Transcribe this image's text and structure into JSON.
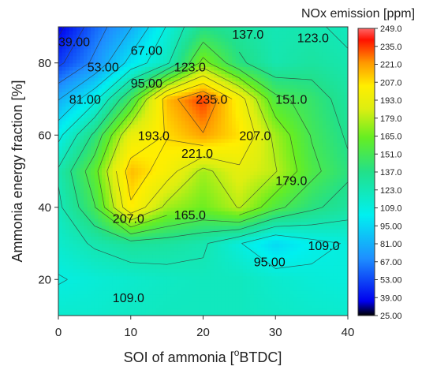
{
  "chart_data": {
    "type": "heatmap",
    "title": "",
    "xlabel": "SOI of ammonia [",
    "xlabel_sup": "o",
    "xlabel_tail": "BTDC]",
    "ylabel": "Ammonia energy fraction [%]",
    "xlim": [
      0,
      40
    ],
    "ylim": [
      10,
      90
    ],
    "x_ticks": [
      "0",
      "10",
      "20",
      "30",
      "40"
    ],
    "y_ticks": [
      "20",
      "40",
      "60",
      "80"
    ],
    "colorbar": {
      "title": "NOx emission [ppm]",
      "min": 25,
      "max": 249,
      "ticks": [
        "249.0",
        "235.0",
        "221.0",
        "207.0",
        "193.0",
        "179.0",
        "165.0",
        "151.0",
        "137.0",
        "123.0",
        "109.0",
        "95.00",
        "81.00",
        "67.00",
        "53.00",
        "39.00",
        "25.00"
      ]
    },
    "x": [
      0,
      5,
      10,
      15,
      20,
      25,
      30,
      35,
      40
    ],
    "y": [
      10,
      20,
      30,
      40,
      50,
      60,
      70,
      80,
      90
    ],
    "z": [
      [
        115,
        115,
        118,
        120,
        120,
        120,
        118,
        116,
        115
      ],
      [
        108,
        112,
        115,
        118,
        120,
        120,
        115,
        112,
        110
      ],
      [
        115,
        125,
        132,
        130,
        125,
        110,
        95,
        105,
        110
      ],
      [
        120,
        150,
        205,
        175,
        165,
        180,
        155,
        140,
        130
      ],
      [
        125,
        160,
        215,
        200,
        175,
        190,
        180,
        155,
        140
      ],
      [
        105,
        140,
        193,
        208,
        220,
        207,
        175,
        150,
        135
      ],
      [
        80,
        105,
        150,
        215,
        235,
        200,
        155,
        145,
        130
      ],
      [
        50,
        70,
        100,
        120,
        170,
        140,
        125,
        130,
        125
      ],
      [
        35,
        60,
        80,
        110,
        137,
        130,
        123,
        125,
        120
      ]
    ],
    "contour_labels": [
      {
        "x": 0,
        "y": 86,
        "text": "39.00"
      },
      {
        "x": 10,
        "y": 83.5,
        "text": "67.00"
      },
      {
        "x": 4,
        "y": 79,
        "text": "53.00"
      },
      {
        "x": 16,
        "y": 79,
        "text": "123.0"
      },
      {
        "x": 24,
        "y": 88,
        "text": "137.0"
      },
      {
        "x": 33,
        "y": 87,
        "text": "123.0"
      },
      {
        "x": 10,
        "y": 74.5,
        "text": "95.00"
      },
      {
        "x": 1.5,
        "y": 70,
        "text": "81.00"
      },
      {
        "x": 19,
        "y": 70,
        "text": "235.0"
      },
      {
        "x": 30,
        "y": 70,
        "text": "151.0"
      },
      {
        "x": 11,
        "y": 60,
        "text": "193.0"
      },
      {
        "x": 25,
        "y": 60,
        "text": "207.0"
      },
      {
        "x": 17,
        "y": 55,
        "text": "221.0"
      },
      {
        "x": 30,
        "y": 47.5,
        "text": "179.0"
      },
      {
        "x": 7.5,
        "y": 37,
        "text": "207.0"
      },
      {
        "x": 16,
        "y": 38,
        "text": "165.0"
      },
      {
        "x": 34.5,
        "y": 29.5,
        "text": "109.0"
      },
      {
        "x": 27,
        "y": 25,
        "text": "95.00"
      },
      {
        "x": 7.5,
        "y": 15,
        "text": "109.0"
      }
    ]
  }
}
